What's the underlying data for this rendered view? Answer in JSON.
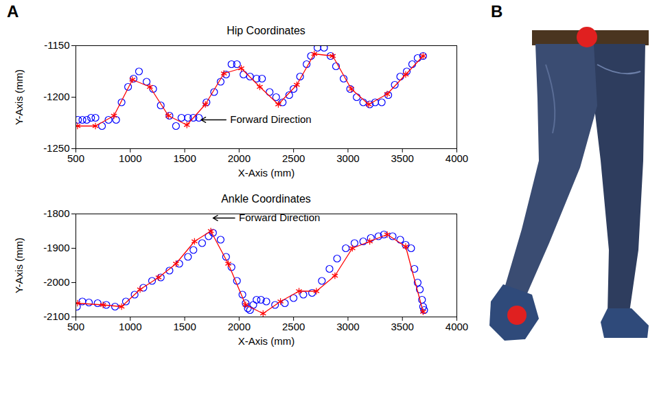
{
  "panel_labels": [
    "A",
    "B"
  ],
  "chart_data": [
    {
      "type": "line",
      "title": "Hip Coordinates",
      "xlabel": "X-Axis (mm)",
      "ylabel": "Y-Axis (mm)",
      "xlim": [
        500,
        4000
      ],
      "xticks": [
        500,
        1000,
        1500,
        2000,
        2500,
        3000,
        3500,
        4000
      ],
      "ylim": [
        -1250,
        -1150
      ],
      "yticks": [
        -1250,
        -1200,
        -1150
      ],
      "series": [
        {
          "color": "#0000ff",
          "marker": "circle",
          "line_style": "none",
          "x": [
            520,
            560,
            600,
            640,
            680,
            740,
            800,
            870,
            920,
            980,
            1030,
            1080,
            1150,
            1210,
            1280,
            1360,
            1420,
            1470,
            1530,
            1580,
            1630,
            1700,
            1770,
            1830,
            1880,
            1930,
            1980,
            2040,
            2100,
            2160,
            2210,
            2280,
            2340,
            2400,
            2460,
            2500,
            2560,
            2620,
            2660,
            2720,
            2780,
            2840,
            2890,
            2960,
            3020,
            3080,
            3140,
            3200,
            3250,
            3310,
            3370,
            3430,
            3480,
            3540,
            3590,
            3640,
            3690
          ],
          "values": [
            -1222,
            -1222,
            -1222,
            -1220,
            -1220,
            -1228,
            -1222,
            -1222,
            -1205,
            -1190,
            -1182,
            -1175,
            -1185,
            -1192,
            -1208,
            -1218,
            -1228,
            -1220,
            -1220,
            -1220,
            -1220,
            -1205,
            -1195,
            -1185,
            -1178,
            -1168,
            -1168,
            -1178,
            -1180,
            -1182,
            -1182,
            -1195,
            -1200,
            -1205,
            -1198,
            -1192,
            -1180,
            -1168,
            -1160,
            -1152,
            -1152,
            -1160,
            -1170,
            -1182,
            -1192,
            -1200,
            -1205,
            -1207,
            -1205,
            -1205,
            -1198,
            -1188,
            -1180,
            -1175,
            -1168,
            -1162,
            -1160
          ]
        },
        {
          "color": "#ff0000",
          "marker": "asterisk",
          "line_style": "solid",
          "x": [
            515,
            680,
            850,
            1020,
            1180,
            1350,
            1520,
            1690,
            1860,
            2020,
            2190,
            2360,
            2530,
            2690,
            2860,
            3030,
            3190,
            3360,
            3530,
            3690
          ],
          "values": [
            -1228,
            -1228,
            -1218,
            -1183,
            -1190,
            -1218,
            -1227,
            -1207,
            -1177,
            -1172,
            -1190,
            -1207,
            -1188,
            -1158,
            -1160,
            -1192,
            -1207,
            -1197,
            -1178,
            -1160
          ]
        }
      ],
      "annotations": [
        {
          "text": "Forward Direction",
          "x": 1880,
          "y": -1222,
          "arrow_x": 1650
        }
      ]
    },
    {
      "type": "line",
      "title": "Ankle Coordinates",
      "xlabel": "X-Axis (mm)",
      "ylabel": "Y-Axis (mm)",
      "xlim": [
        500,
        4000
      ],
      "xticks": [
        500,
        1000,
        1500,
        2000,
        2500,
        3000,
        3500,
        4000
      ],
      "ylim": [
        -2100,
        -1800
      ],
      "yticks": [
        -2100,
        -2000,
        -1900,
        -1800
      ],
      "series": [
        {
          "color": "#0000ff",
          "marker": "circle",
          "line_style": "none",
          "x": [
            510,
            560,
            620,
            700,
            780,
            860,
            960,
            1040,
            1120,
            1200,
            1280,
            1360,
            1450,
            1530,
            1580,
            1660,
            1720,
            1760,
            1830,
            1880,
            1930,
            1980,
            2030,
            2060,
            2080,
            2100,
            2130,
            2160,
            2200,
            2250,
            2330,
            2420,
            2500,
            2590,
            2670,
            2760,
            2830,
            2900,
            2980,
            3060,
            3140,
            3210,
            3280,
            3330,
            3410,
            3480,
            3530,
            3580,
            3610,
            3640,
            3660,
            3680,
            3690,
            3700
          ],
          "values": [
            -2070,
            -2055,
            -2058,
            -2060,
            -2065,
            -2070,
            -2055,
            -2035,
            -2015,
            -1995,
            -1985,
            -1965,
            -1945,
            -1925,
            -1905,
            -1885,
            -1865,
            -1855,
            -1875,
            -1925,
            -1955,
            -1995,
            -2035,
            -2060,
            -2075,
            -2080,
            -2065,
            -2050,
            -2050,
            -2055,
            -2065,
            -2060,
            -2045,
            -2035,
            -2030,
            -1995,
            -1960,
            -1930,
            -1900,
            -1885,
            -1880,
            -1870,
            -1865,
            -1860,
            -1865,
            -1875,
            -1890,
            -1900,
            -1960,
            -2000,
            -2020,
            -2050,
            -2070,
            -2080
          ]
        },
        {
          "color": "#ff0000",
          "marker": "asterisk",
          "line_style": "solid",
          "x": [
            515,
            750,
            920,
            1090,
            1260,
            1420,
            1590,
            1740,
            1900,
            2060,
            2220,
            2380,
            2550,
            2710,
            2880,
            3040,
            3200,
            3360,
            3530,
            3690
          ],
          "values": [
            -2060,
            -2065,
            -2070,
            -2020,
            -1985,
            -1945,
            -1880,
            -1850,
            -1945,
            -2065,
            -2090,
            -2055,
            -2025,
            -2025,
            -1980,
            -1900,
            -1880,
            -1860,
            -1895,
            -2085
          ]
        }
      ],
      "annotations": [
        {
          "text": "Forward Direction",
          "x": 1960,
          "y": -1812,
          "arrow_x": 1760
        }
      ]
    }
  ]
}
